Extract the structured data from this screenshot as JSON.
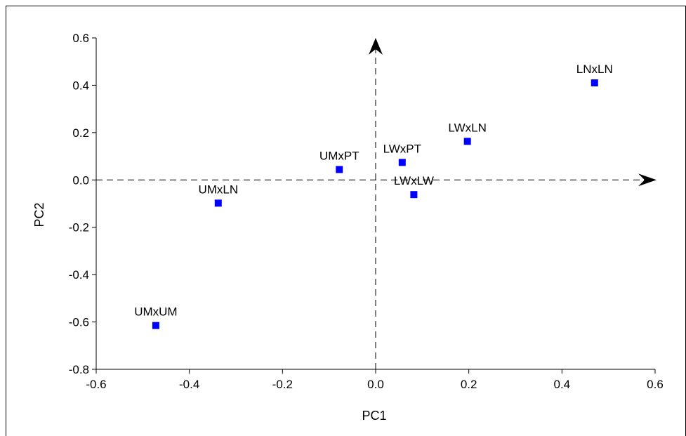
{
  "chart_data": {
    "type": "scatter",
    "title": "",
    "xlabel": "PC1",
    "ylabel": "PC2",
    "xlim": [
      -0.6,
      0.6
    ],
    "ylim": [
      -0.8,
      0.6
    ],
    "xticks": [
      "-0.6",
      "-0.4",
      "-0.2",
      "0.0",
      "0.2",
      "0.4",
      "0.6"
    ],
    "yticks": [
      "0.6",
      "0.4",
      "0.2",
      "0.0",
      "-0.2",
      "-0.4",
      "-0.6",
      "-0.8"
    ],
    "grid": false,
    "legend": "none",
    "marker_color": "#0000ff",
    "reference_axes": "dashed lines through origin with arrowheads",
    "points": [
      {
        "label": "LNxLN",
        "x": 0.47,
        "y": 0.41
      },
      {
        "label": "LWxLN",
        "x": 0.197,
        "y": 0.163
      },
      {
        "label": "LWxPT",
        "x": 0.057,
        "y": 0.074
      },
      {
        "label": "UMxPT",
        "x": -0.078,
        "y": 0.044
      },
      {
        "label": "LWxLW",
        "x": 0.082,
        "y": -0.062
      },
      {
        "label": "UMxLN",
        "x": -0.338,
        "y": -0.098
      },
      {
        "label": "UMxUM",
        "x": -0.472,
        "y": -0.615
      }
    ]
  }
}
